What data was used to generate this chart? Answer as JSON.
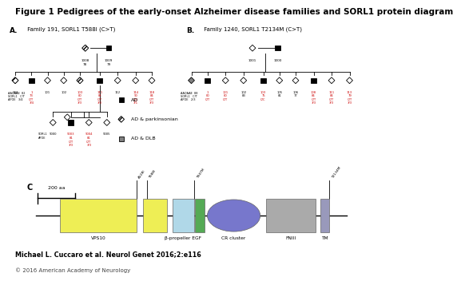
{
  "title": "Figure 1 Pedigrees of the early-onset Alzheimer disease families and SORL1 protein diagram",
  "title_fontsize": 7.5,
  "panel_a_label": "A.",
  "panel_a_subtitle": " Family 191, SORL1 T588I (C>T)",
  "panel_b_label": "B.",
  "panel_b_subtitle": " Family 1240, SORL1 T2134M (C>T)",
  "panel_c_label": "C",
  "legend_items": [
    "AD",
    "AD & parkinsonian",
    "AD & DLB"
  ],
  "author_line": "Michael L. Cuccaro et al. Neurol Genet 2016;2:e116",
  "copyright_line": "© 2016 American Academy of Neurology",
  "background_color": "#ffffff",
  "red_color": "#cc0000"
}
